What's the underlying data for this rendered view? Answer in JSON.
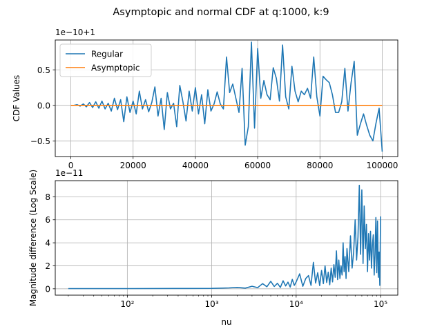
{
  "figure": {
    "title": "Asymptopic and normal CDF at q:1000, k:9"
  },
  "chart_data": [
    {
      "type": "line",
      "title": "",
      "xlabel": "",
      "ylabel": "CDF Values",
      "offset_label": "1e−10+1",
      "xlim": [
        -5000,
        105000
      ],
      "ylim": [
        -0.72,
        0.92
      ],
      "xticks": [
        0,
        20000,
        40000,
        60000,
        80000,
        100000
      ],
      "xtick_labels": [
        "0",
        "20000",
        "40000",
        "60000",
        "80000",
        "100000"
      ],
      "yticks": [
        -0.5,
        0.0,
        0.5
      ],
      "ytick_labels": [
        "−0.5",
        "0.0",
        "0.5"
      ],
      "grid": true,
      "legend_position": "top-left",
      "series": [
        {
          "name": "Regular",
          "color": "#1f77b4",
          "points": [
            [
              0,
              0.0
            ],
            [
              1000,
              0.0
            ],
            [
              2000,
              0.01
            ],
            [
              3000,
              -0.01
            ],
            [
              4000,
              0.02
            ],
            [
              5000,
              -0.02
            ],
            [
              6000,
              0.04
            ],
            [
              7000,
              -0.03
            ],
            [
              8000,
              0.05
            ],
            [
              9000,
              -0.04
            ],
            [
              10000,
              0.06
            ],
            [
              11000,
              -0.05
            ],
            [
              12000,
              0.03
            ],
            [
              13000,
              -0.08
            ],
            [
              14000,
              0.1
            ],
            [
              15000,
              -0.06
            ],
            [
              16000,
              0.08
            ],
            [
              17000,
              -0.23
            ],
            [
              18000,
              0.12
            ],
            [
              19000,
              -0.1
            ],
            [
              20000,
              0.06
            ],
            [
              21000,
              -0.12
            ],
            [
              22000,
              0.2
            ],
            [
              23000,
              -0.05
            ],
            [
              24000,
              0.08
            ],
            [
              25000,
              -0.09
            ],
            [
              26000,
              0.04
            ],
            [
              27000,
              0.26
            ],
            [
              28000,
              -0.15
            ],
            [
              29000,
              0.1
            ],
            [
              30000,
              -0.34
            ],
            [
              31000,
              0.18
            ],
            [
              32000,
              -0.05
            ],
            [
              33000,
              0.03
            ],
            [
              34000,
              -0.3
            ],
            [
              35000,
              0.28
            ],
            [
              36000,
              0.05
            ],
            [
              37000,
              -0.22
            ],
            [
              38000,
              0.2
            ],
            [
              39000,
              -0.08
            ],
            [
              40000,
              0.25
            ],
            [
              41000,
              -0.12
            ],
            [
              42000,
              0.15
            ],
            [
              43000,
              -0.26
            ],
            [
              44000,
              0.22
            ],
            [
              45000,
              -0.08
            ],
            [
              46000,
              0.02
            ],
            [
              47000,
              0.19
            ],
            [
              48000,
              0.02
            ],
            [
              49000,
              -0.05
            ],
            [
              50000,
              0.68
            ],
            [
              51000,
              0.18
            ],
            [
              52000,
              0.3
            ],
            [
              53000,
              0.1
            ],
            [
              54000,
              -0.1
            ],
            [
              55000,
              0.52
            ],
            [
              56000,
              -0.56
            ],
            [
              57000,
              -0.3
            ],
            [
              58000,
              0.89
            ],
            [
              59000,
              -0.32
            ],
            [
              60000,
              0.8
            ],
            [
              61000,
              0.1
            ],
            [
              62000,
              0.35
            ],
            [
              63000,
              0.15
            ],
            [
              64000,
              0.08
            ],
            [
              65000,
              0.53
            ],
            [
              66000,
              0.38
            ],
            [
              67000,
              0.06
            ],
            [
              68000,
              0.85
            ],
            [
              69000,
              0.12
            ],
            [
              70000,
              -0.05
            ],
            [
              71000,
              0.55
            ],
            [
              72000,
              0.2
            ],
            [
              73000,
              0.05
            ],
            [
              74000,
              0.2
            ],
            [
              75000,
              0.15
            ],
            [
              76000,
              0.24
            ],
            [
              77000,
              0.1
            ],
            [
              78000,
              0.68
            ],
            [
              79000,
              0.12
            ],
            [
              80000,
              -0.15
            ],
            [
              81000,
              0.41
            ],
            [
              82000,
              0.36
            ],
            [
              83000,
              0.32
            ],
            [
              84000,
              0.15
            ],
            [
              85000,
              -0.1
            ],
            [
              86000,
              -0.1
            ],
            [
              87000,
              0.05
            ],
            [
              88000,
              0.52
            ],
            [
              89000,
              -0.08
            ],
            [
              90000,
              0.32
            ],
            [
              91000,
              0.62
            ],
            [
              92000,
              -0.42
            ],
            [
              93000,
              -0.26
            ],
            [
              94000,
              -0.12
            ],
            [
              95000,
              -0.28
            ],
            [
              96000,
              -0.42
            ],
            [
              97000,
              -0.5
            ],
            [
              98000,
              -0.25
            ],
            [
              99000,
              -0.04
            ],
            [
              100000,
              -0.65
            ]
          ]
        },
        {
          "name": "Asymptopic",
          "color": "#ff7f0e",
          "points": [
            [
              0,
              0.0
            ],
            [
              100000,
              0.0
            ]
          ]
        }
      ]
    },
    {
      "type": "line",
      "title": "",
      "xlabel": "nu",
      "ylabel": "Magnitude difference (Log Scale)",
      "offset_label": "1e−11",
      "x_scale": "log",
      "xlim": [
        14,
        160000
      ],
      "ylim": [
        -0.55,
        9.4
      ],
      "xticks": [
        100,
        1000,
        10000,
        100000
      ],
      "xtick_labels": [
        "10²",
        "10³",
        "10⁴",
        "10⁵"
      ],
      "yticks": [
        0,
        2,
        4,
        6,
        8
      ],
      "ytick_labels": [
        "0",
        "2",
        "4",
        "6",
        "8"
      ],
      "grid": true,
      "series": [
        {
          "name": "",
          "color": "#1f77b4",
          "points": [
            [
              20,
              0.02
            ],
            [
              100,
              0.02
            ],
            [
              500,
              0.03
            ],
            [
              1000,
              0.04
            ],
            [
              1600,
              0.08
            ],
            [
              2000,
              0.12
            ],
            [
              2500,
              0.06
            ],
            [
              3000,
              0.22
            ],
            [
              3500,
              0.1
            ],
            [
              4000,
              0.45
            ],
            [
              4500,
              0.18
            ],
            [
              5000,
              0.65
            ],
            [
              5500,
              0.2
            ],
            [
              6000,
              0.48
            ],
            [
              6500,
              0.12
            ],
            [
              7000,
              0.7
            ],
            [
              7500,
              0.25
            ],
            [
              8000,
              0.58
            ],
            [
              8500,
              0.15
            ],
            [
              9000,
              0.82
            ],
            [
              9500,
              0.3
            ],
            [
              10000,
              0.6
            ],
            [
              11000,
              1.3
            ],
            [
              12000,
              0.22
            ],
            [
              13000,
              0.9
            ],
            [
              14000,
              1.15
            ],
            [
              15000,
              0.3
            ],
            [
              16000,
              2.3
            ],
            [
              17000,
              0.5
            ],
            [
              18000,
              1.4
            ],
            [
              19000,
              0.28
            ],
            [
              20000,
              1.6
            ],
            [
              21000,
              0.45
            ],
            [
              22000,
              2.0
            ],
            [
              23000,
              0.55
            ],
            [
              24000,
              1.45
            ],
            [
              25000,
              0.35
            ],
            [
              26000,
              1.8
            ],
            [
              27000,
              0.6
            ],
            [
              28000,
              2.1
            ],
            [
              29000,
              1.0
            ],
            [
              30000,
              3.3
            ],
            [
              31000,
              0.8
            ],
            [
              32000,
              2.5
            ],
            [
              33000,
              0.9
            ],
            [
              34000,
              2.0
            ],
            [
              35000,
              1.2
            ],
            [
              36000,
              4.0
            ],
            [
              37000,
              1.5
            ],
            [
              38000,
              2.8
            ],
            [
              39000,
              0.9
            ],
            [
              40000,
              3.5
            ],
            [
              42000,
              1.5
            ],
            [
              44000,
              4.6
            ],
            [
              46000,
              1.8
            ],
            [
              48000,
              3.2
            ],
            [
              50000,
              6.0
            ],
            [
              52000,
              2.5
            ],
            [
              54000,
              4.5
            ],
            [
              56000,
              9.0
            ],
            [
              58000,
              3.0
            ],
            [
              60000,
              8.6
            ],
            [
              62000,
              2.2
            ],
            [
              64000,
              7.2
            ],
            [
              66000,
              3.5
            ],
            [
              68000,
              5.6
            ],
            [
              70000,
              1.5
            ],
            [
              72000,
              4.8
            ],
            [
              74000,
              2.5
            ],
            [
              76000,
              5.0
            ],
            [
              78000,
              1.8
            ],
            [
              80000,
              3.8
            ],
            [
              82000,
              4.7
            ],
            [
              84000,
              1.2
            ],
            [
              86000,
              3.0
            ],
            [
              88000,
              6.2
            ],
            [
              90000,
              1.4
            ],
            [
              92000,
              5.9
            ],
            [
              94000,
              1.0
            ],
            [
              96000,
              3.2
            ],
            [
              98000,
              0.3
            ],
            [
              100000,
              6.3
            ]
          ]
        }
      ]
    }
  ]
}
